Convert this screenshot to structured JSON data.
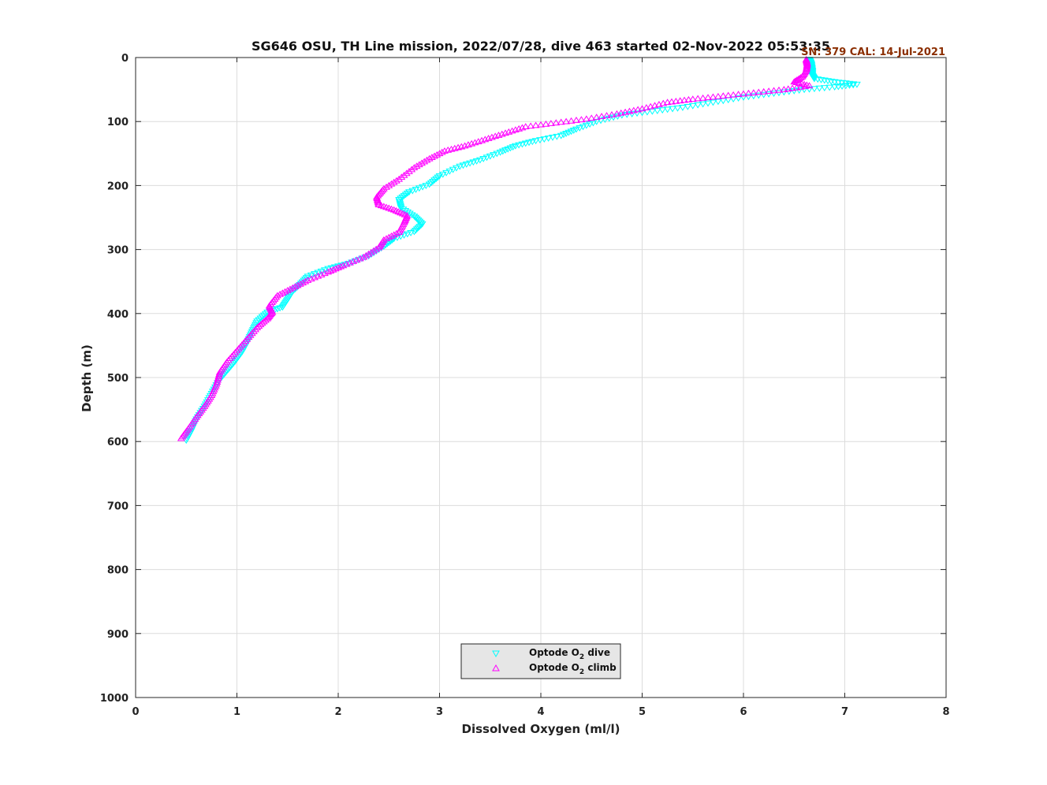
{
  "chart_data": {
    "type": "scatter",
    "title": "SG646 OSU, TH Line mission, 2022/07/28, dive 463 started 02-Nov-2022 05:53:35",
    "annotation": "SN: 379  CAL: 14-Jul-2021",
    "annotation_color": "#8B2E00",
    "xlabel": "Dissolved Oxygen (ml/l)",
    "ylabel": "Depth (m)",
    "xlim": [
      0,
      8
    ],
    "ylim": [
      0,
      1000
    ],
    "y_reversed": true,
    "xticks": [
      "0",
      "1",
      "2",
      "3",
      "4",
      "5",
      "6",
      "7",
      "8"
    ],
    "yticks": [
      "0",
      "100",
      "200",
      "300",
      "400",
      "500",
      "600",
      "700",
      "800",
      "900",
      "1000"
    ],
    "grid": true,
    "legend": {
      "location": "bottom-center",
      "background": "#e6e6e6",
      "entries": [
        {
          "prefix": "Optode O",
          "sub": "2",
          "suffix": " dive"
        },
        {
          "prefix": "Optode O",
          "sub": "2",
          "suffix": " climb"
        }
      ]
    },
    "series": [
      {
        "name": "Optode O2 dive",
        "marker": "triangle-down",
        "color": "#00ffff",
        "points": [
          [
            6.65,
            3
          ],
          [
            6.67,
            10
          ],
          [
            6.68,
            20
          ],
          [
            6.68,
            28
          ],
          [
            6.7,
            33
          ],
          [
            6.9,
            38
          ],
          [
            7.12,
            42
          ],
          [
            6.9,
            46
          ],
          [
            6.6,
            50
          ],
          [
            6.3,
            56
          ],
          [
            6.0,
            62
          ],
          [
            5.7,
            70
          ],
          [
            5.4,
            78
          ],
          [
            5.1,
            84
          ],
          [
            4.8,
            90
          ],
          [
            4.55,
            100
          ],
          [
            4.35,
            112
          ],
          [
            4.2,
            122
          ],
          [
            3.95,
            130
          ],
          [
            3.75,
            138
          ],
          [
            3.6,
            148
          ],
          [
            3.4,
            160
          ],
          [
            3.2,
            170
          ],
          [
            3.0,
            185
          ],
          [
            2.9,
            198
          ],
          [
            2.7,
            210
          ],
          [
            2.6,
            222
          ],
          [
            2.62,
            235
          ],
          [
            2.75,
            248
          ],
          [
            2.83,
            260
          ],
          [
            2.75,
            272
          ],
          [
            2.55,
            283
          ],
          [
            2.45,
            295
          ],
          [
            2.3,
            310
          ],
          [
            2.1,
            322
          ],
          [
            1.9,
            330
          ],
          [
            1.7,
            342
          ],
          [
            1.62,
            355
          ],
          [
            1.55,
            365
          ],
          [
            1.5,
            378
          ],
          [
            1.45,
            390
          ],
          [
            1.3,
            398
          ],
          [
            1.2,
            412
          ],
          [
            1.15,
            428
          ],
          [
            1.1,
            445
          ],
          [
            1.05,
            460
          ],
          [
            0.98,
            475
          ],
          [
            0.9,
            490
          ],
          [
            0.82,
            505
          ],
          [
            0.75,
            525
          ],
          [
            0.68,
            545
          ],
          [
            0.6,
            565
          ],
          [
            0.55,
            583
          ],
          [
            0.5,
            598
          ]
        ]
      },
      {
        "name": "Optode O2 climb",
        "marker": "triangle-up",
        "color": "#ff00ff",
        "points": [
          [
            0.45,
            595
          ],
          [
            0.52,
            580
          ],
          [
            0.6,
            562
          ],
          [
            0.68,
            545
          ],
          [
            0.75,
            528
          ],
          [
            0.8,
            510
          ],
          [
            0.83,
            492
          ],
          [
            0.9,
            476
          ],
          [
            1.0,
            458
          ],
          [
            1.1,
            440
          ],
          [
            1.2,
            422
          ],
          [
            1.3,
            408
          ],
          [
            1.35,
            398
          ],
          [
            1.32,
            388
          ],
          [
            1.4,
            372
          ],
          [
            1.55,
            360
          ],
          [
            1.7,
            348
          ],
          [
            1.9,
            335
          ],
          [
            2.05,
            325
          ],
          [
            2.25,
            312
          ],
          [
            2.4,
            297
          ],
          [
            2.45,
            285
          ],
          [
            2.6,
            273
          ],
          [
            2.65,
            258
          ],
          [
            2.68,
            247
          ],
          [
            2.55,
            238
          ],
          [
            2.4,
            230
          ],
          [
            2.38,
            218
          ],
          [
            2.45,
            205
          ],
          [
            2.6,
            190
          ],
          [
            2.75,
            172
          ],
          [
            2.9,
            158
          ],
          [
            3.05,
            146
          ],
          [
            3.25,
            138
          ],
          [
            3.45,
            128
          ],
          [
            3.65,
            118
          ],
          [
            3.85,
            108
          ],
          [
            4.15,
            102
          ],
          [
            4.45,
            96
          ],
          [
            4.75,
            88
          ],
          [
            5.0,
            80
          ],
          [
            5.25,
            70
          ],
          [
            5.5,
            65
          ],
          [
            5.8,
            60
          ],
          [
            6.1,
            55
          ],
          [
            6.4,
            50
          ],
          [
            6.65,
            44
          ],
          [
            6.5,
            38
          ],
          [
            6.58,
            30
          ],
          [
            6.62,
            20
          ],
          [
            6.63,
            10
          ],
          [
            6.62,
            3
          ]
        ]
      }
    ]
  }
}
